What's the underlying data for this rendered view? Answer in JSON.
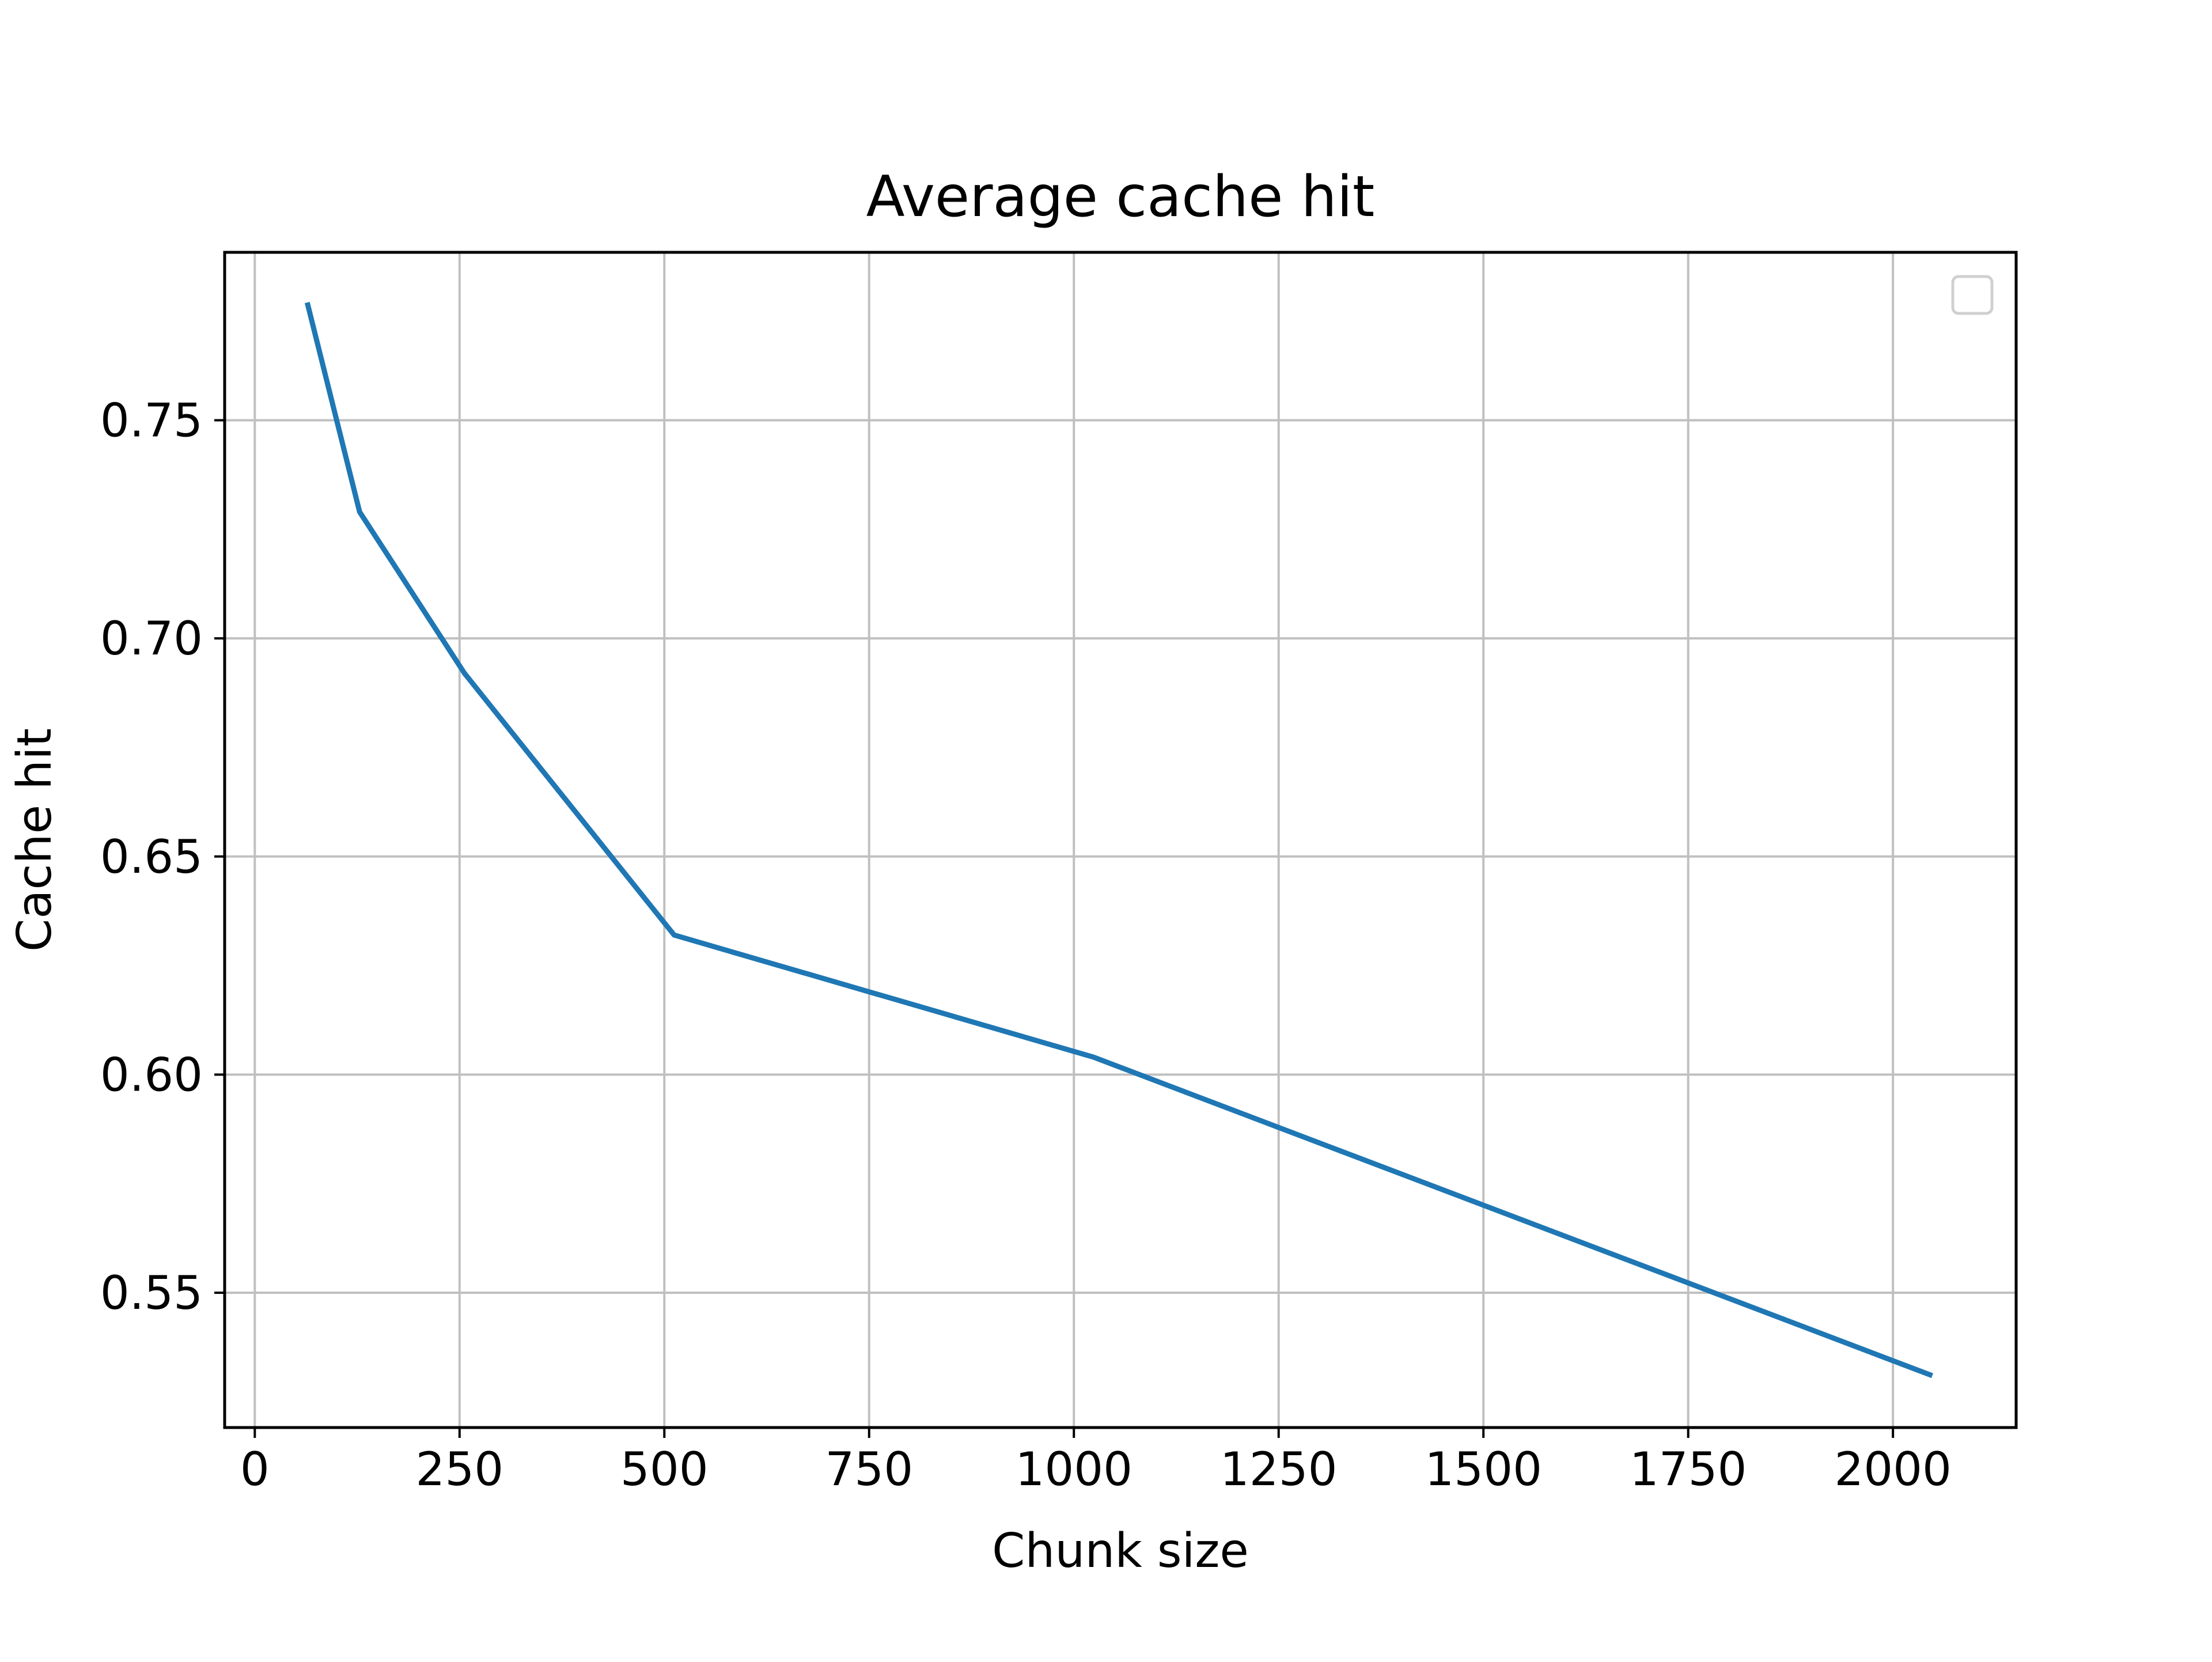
{
  "chart_data": {
    "type": "line",
    "title": "Average cache hit",
    "xlabel": "Chunk size",
    "ylabel": "Cache hit",
    "xlim": [
      -36.8,
      2150.4
    ],
    "ylim": [
      0.5191,
      0.7885
    ],
    "xticks": [
      0,
      250,
      500,
      750,
      1000,
      1250,
      1500,
      1750,
      2000
    ],
    "xtick_labels": [
      "0",
      "250",
      "500",
      "750",
      "1000",
      "1250",
      "1500",
      "1750",
      "2000"
    ],
    "yticks": [
      0.55,
      0.6,
      0.65,
      0.7,
      0.75
    ],
    "ytick_labels": [
      "0.55",
      "0.60",
      "0.65",
      "0.70",
      "0.75"
    ],
    "grid": true,
    "legend": "top-right (empty)",
    "series": [
      {
        "color": "#1f77b4",
        "x": [
          64,
          128,
          256,
          512,
          1024,
          2048
        ],
        "y": [
          0.777,
          0.729,
          0.692,
          0.632,
          0.604,
          0.531
        ]
      }
    ]
  },
  "colors": {
    "grid": "#c0c0c0",
    "axes": "#000000",
    "legend_border": "#d0d0d0"
  }
}
